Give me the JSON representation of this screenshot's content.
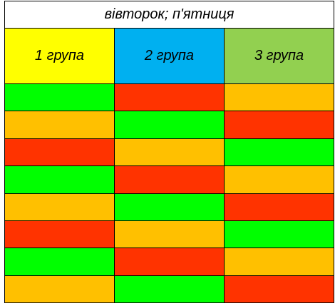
{
  "title": "вівторок; п'ятниця",
  "groups": [
    {
      "label": "1 група",
      "color": "#ffff00"
    },
    {
      "label": "2 група",
      "color": "#00b0f0"
    },
    {
      "label": "3 група",
      "color": "#92d050"
    }
  ],
  "palette": {
    "green": "#00ff00",
    "orange": "#ffc000",
    "red": "#ff3300"
  },
  "rows": [
    [
      "green",
      "red",
      "orange"
    ],
    [
      "orange",
      "green",
      "red"
    ],
    [
      "red",
      "orange",
      "green"
    ],
    [
      "green",
      "red",
      "orange"
    ],
    [
      "orange",
      "green",
      "red"
    ],
    [
      "red",
      "orange",
      "green"
    ],
    [
      "green",
      "red",
      "orange"
    ],
    [
      "orange",
      "green",
      "red"
    ]
  ]
}
